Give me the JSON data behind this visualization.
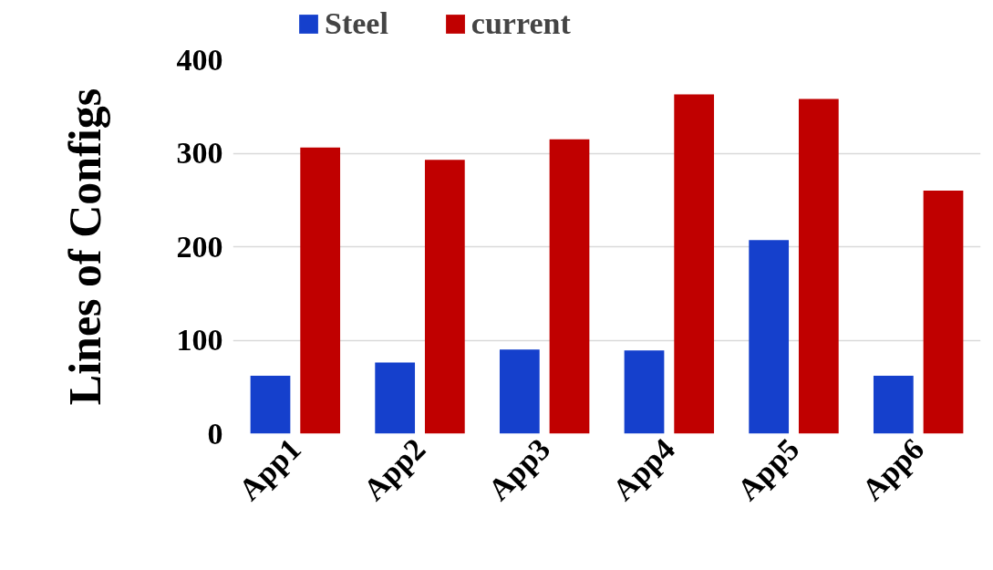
{
  "chart_data": {
    "type": "bar",
    "ylabel": "Lines of Configs",
    "categories": [
      "App1",
      "App2",
      "App3",
      "App4",
      "App5",
      "App6"
    ],
    "series": [
      {
        "name": "Steel",
        "color": "#1540cc",
        "values": [
          62,
          76,
          90,
          89,
          207,
          62
        ]
      },
      {
        "name": "current",
        "color": "#c00000",
        "values": [
          306,
          293,
          315,
          363,
          358,
          260
        ]
      }
    ],
    "ylim": [
      0,
      400
    ],
    "yticks": [
      0,
      100,
      200,
      300,
      400
    ],
    "grid": "y",
    "legend": "top"
  }
}
